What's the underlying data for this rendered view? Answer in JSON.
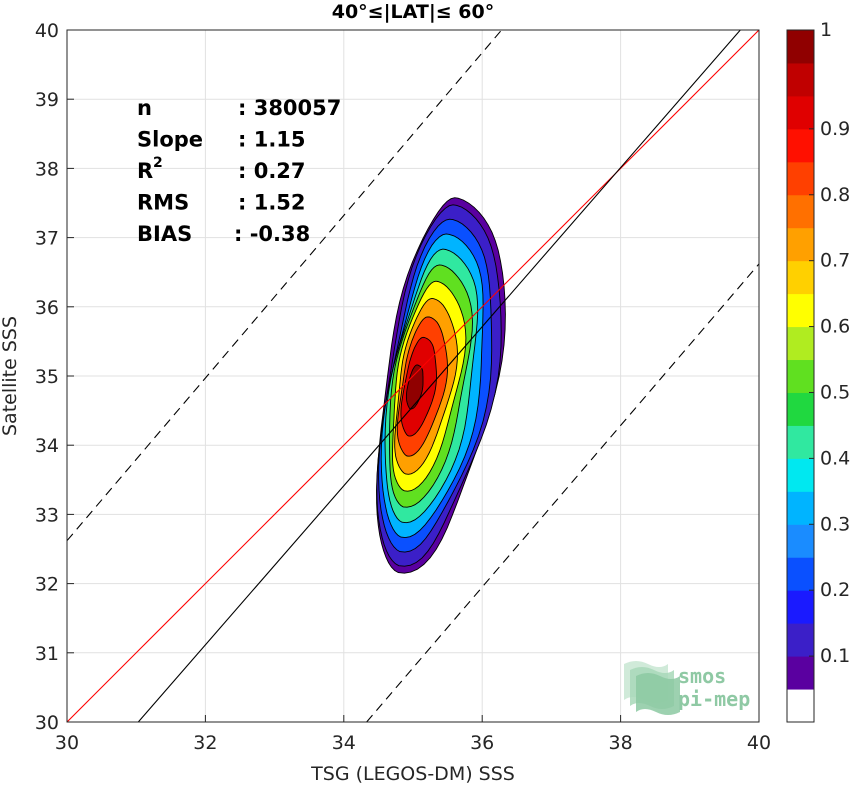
{
  "chart_data": {
    "type": "contour",
    "title": "40°≤|LAT|≤ 60°",
    "xlabel": "TSG (LEGOS-DM) SSS",
    "ylabel": "Satellite SSS",
    "xlim": [
      30,
      40
    ],
    "ylim": [
      30,
      40
    ],
    "xticks": [
      "30",
      "32",
      "34",
      "36",
      "38",
      "40"
    ],
    "yticks": [
      "30",
      "31",
      "32",
      "33",
      "34",
      "35",
      "36",
      "37",
      "38",
      "39",
      "40"
    ],
    "grid": true,
    "stats": [
      {
        "label": "n",
        "value": ": 380057"
      },
      {
        "label": "Slope",
        "value": ": 1.15"
      },
      {
        "label": "R",
        "sup": "2",
        "value": ": 0.27"
      },
      {
        "label": "RMS",
        "value": ": 1.52"
      },
      {
        "label": "BIAS",
        "value": ": -0.38"
      }
    ],
    "lines": [
      {
        "name": "identity",
        "color": "#ff0000",
        "style": "solid",
        "points": [
          [
            30,
            30
          ],
          [
            40,
            40
          ]
        ]
      },
      {
        "name": "regression",
        "color": "#000000",
        "style": "solid",
        "points": [
          [
            31.03,
            30
          ],
          [
            40,
            40.31
          ]
        ]
      },
      {
        "name": "upper-bound",
        "color": "#000000",
        "style": "dashed",
        "points": [
          [
            30,
            32.62
          ],
          [
            36.28,
            40
          ]
        ]
      },
      {
        "name": "lower-bound",
        "color": "#000000",
        "style": "dashed",
        "points": [
          [
            34.33,
            30
          ],
          [
            40,
            36.62
          ]
        ]
      }
    ],
    "density_peak": {
      "x": 35.0,
      "y": 34.85
    },
    "contour_levels": [
      0.05,
      0.1,
      0.2,
      0.3,
      0.4,
      0.5,
      0.6,
      0.7,
      0.8,
      0.9,
      1.0
    ],
    "colorbar": {
      "ticks": [
        "0.1",
        "0.2",
        "0.3",
        "0.4",
        "0.5",
        "0.6",
        "0.7",
        "0.8",
        "0.9",
        "1"
      ],
      "colors": [
        "#ffffff",
        "#5a00a0",
        "#3b1fc8",
        "#1a1aff",
        "#0a50ff",
        "#1a8cff",
        "#00b4ff",
        "#00e8f0",
        "#30e8a0",
        "#20d840",
        "#60e020",
        "#b0ec20",
        "#ffff00",
        "#ffd000",
        "#ffa000",
        "#ff7000",
        "#ff4000",
        "#ff1000",
        "#e00000",
        "#c00000",
        "#900000"
      ]
    },
    "logo_lines": [
      "smos",
      "pi-mep"
    ]
  }
}
